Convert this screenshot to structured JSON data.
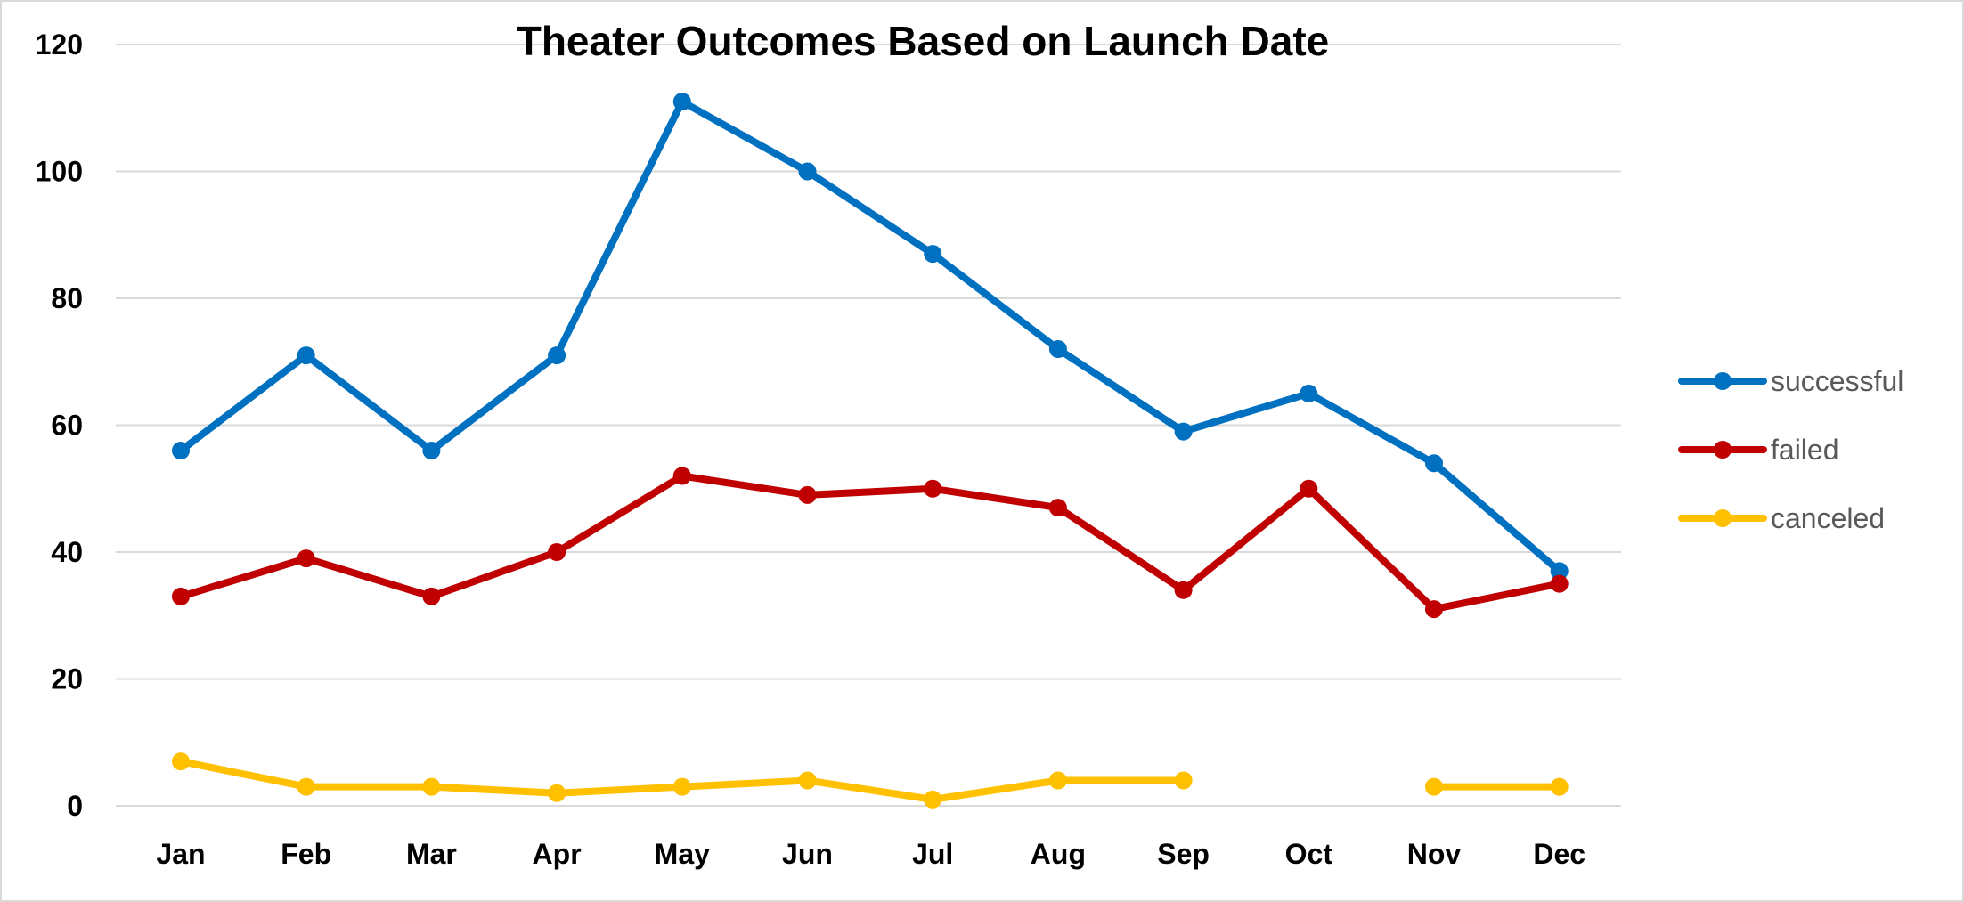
{
  "chart_data": {
    "type": "line",
    "title": "Theater Outcomes Based on Launch Date",
    "xlabel": "",
    "ylabel": "",
    "categories": [
      "Jan",
      "Feb",
      "Mar",
      "Apr",
      "May",
      "Jun",
      "Jul",
      "Aug",
      "Sep",
      "Oct",
      "Nov",
      "Dec"
    ],
    "ylim": [
      0,
      120
    ],
    "yticks": [
      0,
      20,
      40,
      60,
      80,
      100,
      120
    ],
    "grid": true,
    "legend_position": "right",
    "series": [
      {
        "name": "successful",
        "color": "#0070c0",
        "values": [
          56,
          71,
          56,
          71,
          111,
          100,
          87,
          72,
          59,
          65,
          54,
          37
        ]
      },
      {
        "name": "failed",
        "color": "#c00000",
        "values": [
          33,
          39,
          33,
          40,
          52,
          49,
          50,
          47,
          34,
          50,
          31,
          35
        ]
      },
      {
        "name": "canceled",
        "color": "#ffc000",
        "values": [
          7,
          3,
          3,
          2,
          3,
          4,
          1,
          4,
          4,
          null,
          3,
          3
        ]
      }
    ]
  }
}
